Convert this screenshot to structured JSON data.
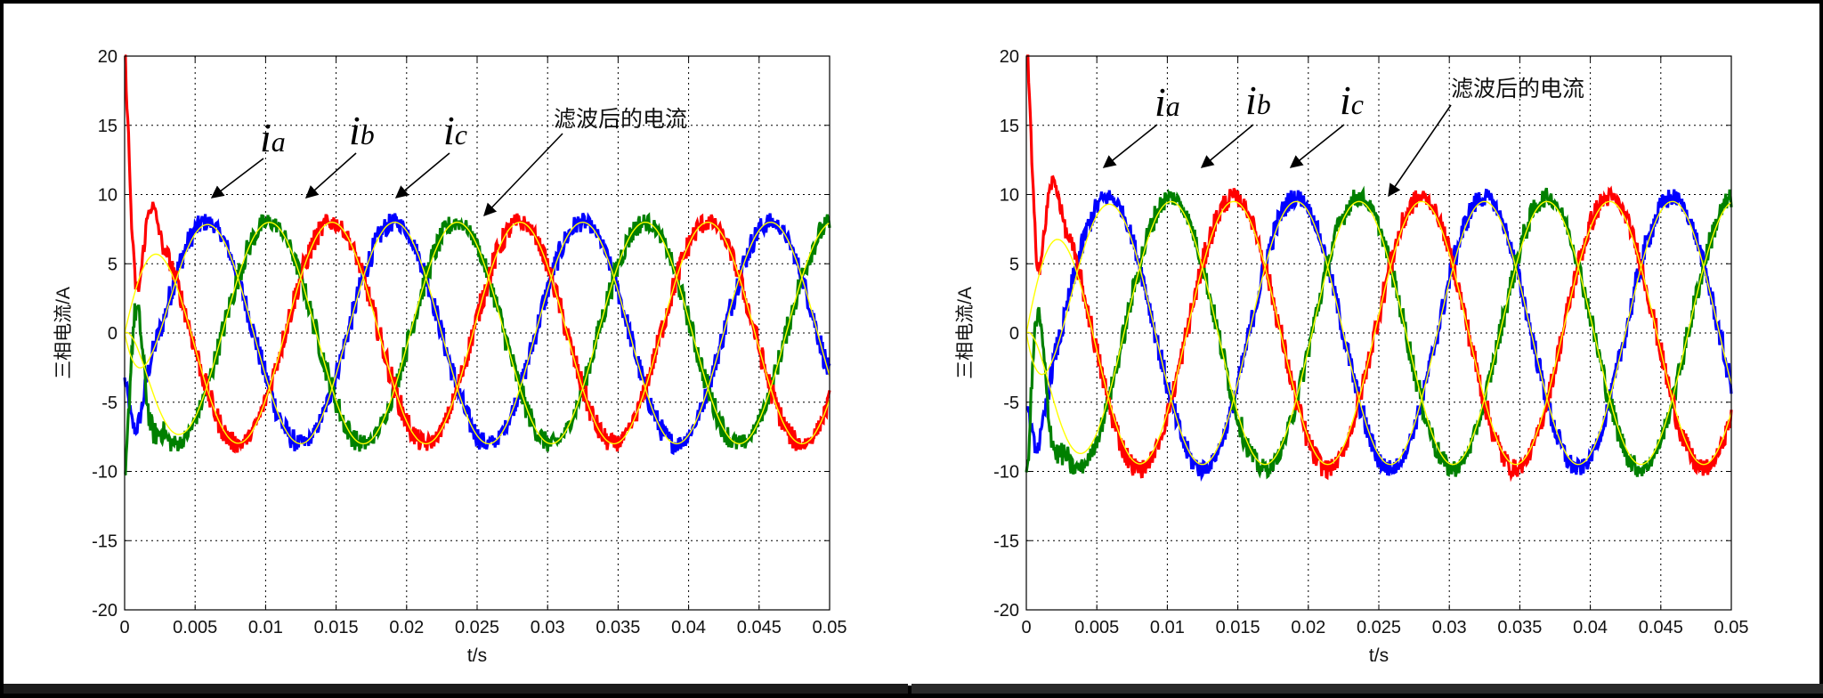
{
  "chart_data": [
    {
      "type": "line",
      "xlabel": "t/s",
      "ylabel": "三相电流/A",
      "xlim": [
        0,
        0.05
      ],
      "ylim": [
        -20,
        20
      ],
      "x_ticks": [
        "0",
        "0.005",
        "0.01",
        "0.015",
        "0.02",
        "0.025",
        "0.03",
        "0.035",
        "0.04",
        "0.045",
        "0.05"
      ],
      "y_ticks": [
        "20",
        "15",
        "10",
        "5",
        "0",
        "-5",
        "-10",
        "-15",
        "-20"
      ],
      "grid": true,
      "frequency_hz": 75,
      "raw_amplitude": 8,
      "noise_band": 1.6,
      "filtered_amplitude": 8,
      "series": [
        {
          "phase": "a",
          "color": "#0000ff",
          "phase_deg": 0
        },
        {
          "phase": "b",
          "color": "#008000",
          "phase_deg": -120
        },
        {
          "phase": "c",
          "color": "#ff0000",
          "phase_deg": 120
        },
        {
          "phase": "filtered",
          "color": "#ffff00"
        }
      ],
      "annotations": {
        "ia": {
          "main": "i",
          "sub": "a"
        },
        "ib": {
          "main": "i",
          "sub": "b"
        },
        "ic": {
          "main": "i",
          "sub": "c"
        },
        "filtered": "滤波后的电流"
      }
    },
    {
      "type": "line",
      "xlabel": "t/s",
      "ylabel": "三相电流/A",
      "xlim": [
        0,
        0.05
      ],
      "ylim": [
        -20,
        20
      ],
      "x_ticks": [
        "0",
        "0.005",
        "0.01",
        "0.015",
        "0.02",
        "0.025",
        "0.03",
        "0.035",
        "0.04",
        "0.045",
        "0.05"
      ],
      "y_ticks": [
        "20",
        "15",
        "10",
        "5",
        "0",
        "-5",
        "-10",
        "-15",
        "-20"
      ],
      "grid": true,
      "frequency_hz": 75,
      "raw_amplitude": 9.8,
      "noise_band": 1.6,
      "filtered_amplitude": 9.5,
      "series": [
        {
          "phase": "a",
          "color": "#0000ff",
          "phase_deg": 0
        },
        {
          "phase": "b",
          "color": "#008000",
          "phase_deg": -120
        },
        {
          "phase": "c",
          "color": "#ff0000",
          "phase_deg": 120
        },
        {
          "phase": "filtered",
          "color": "#ffff00"
        }
      ],
      "annotations": {
        "ia": {
          "main": "i",
          "sub": "a"
        },
        "ib": {
          "main": "i",
          "sub": "b"
        },
        "ic": {
          "main": "i",
          "sub": "c"
        },
        "filtered": "滤波后的电流"
      }
    }
  ]
}
